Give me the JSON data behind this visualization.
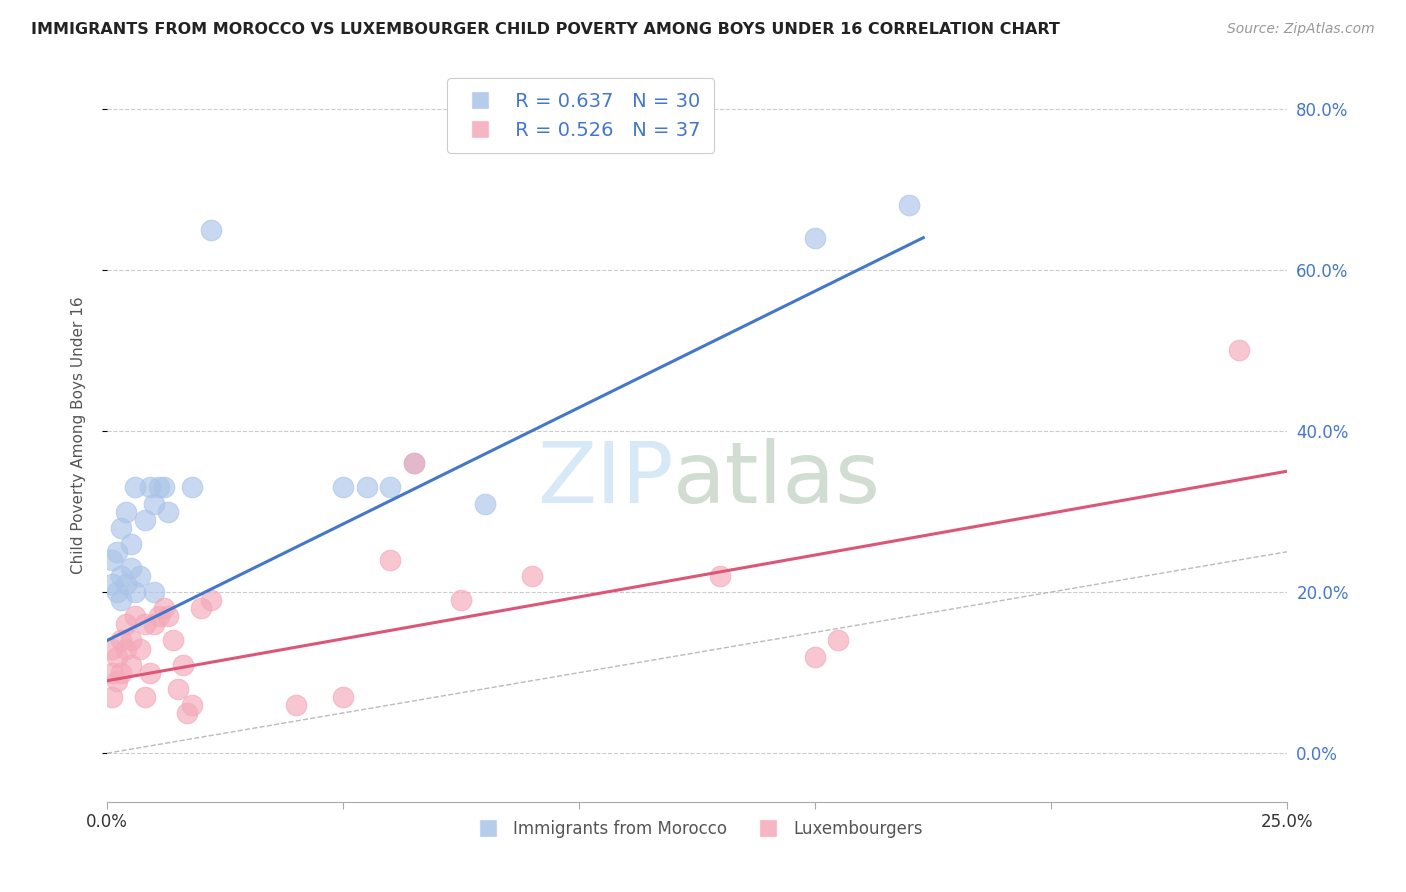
{
  "title": "IMMIGRANTS FROM MOROCCO VS LUXEMBOURGER CHILD POVERTY AMONG BOYS UNDER 16 CORRELATION CHART",
  "source": "Source: ZipAtlas.com",
  "ylabel": "Child Poverty Among Boys Under 16",
  "xlim": [
    0.0,
    0.25
  ],
  "ylim": [
    -0.06,
    0.85
  ],
  "xticks": [
    0.0,
    0.05,
    0.1,
    0.15,
    0.2,
    0.25
  ],
  "xtick_labels_ends": [
    "0.0%",
    "25.0%"
  ],
  "yticks": [
    0.0,
    0.2,
    0.4,
    0.6,
    0.8
  ],
  "ytick_labels": [
    "0.0%",
    "20.0%",
    "40.0%",
    "60.0%",
    "80.0%"
  ],
  "blue_R": "R = 0.637",
  "blue_N": "N = 30",
  "pink_R": "R = 0.526",
  "pink_N": "N = 37",
  "blue_color": "#aac4e8",
  "pink_color": "#f4a8b8",
  "blue_line_color": "#4477cc",
  "pink_line_color": "#dd5577",
  "legend_label_blue": "Immigrants from Morocco",
  "legend_label_pink": "Luxembourgers",
  "watermark_zip": "ZIP",
  "watermark_atlas": "atlas",
  "blue_points_x": [
    0.001,
    0.001,
    0.002,
    0.002,
    0.003,
    0.003,
    0.003,
    0.004,
    0.004,
    0.005,
    0.005,
    0.006,
    0.006,
    0.007,
    0.008,
    0.009,
    0.01,
    0.01,
    0.011,
    0.012,
    0.013,
    0.018,
    0.022,
    0.05,
    0.055,
    0.06,
    0.065,
    0.08,
    0.15,
    0.17
  ],
  "blue_points_y": [
    0.21,
    0.24,
    0.2,
    0.25,
    0.19,
    0.22,
    0.28,
    0.21,
    0.3,
    0.23,
    0.26,
    0.2,
    0.33,
    0.22,
    0.29,
    0.33,
    0.2,
    0.31,
    0.33,
    0.33,
    0.3,
    0.33,
    0.65,
    0.33,
    0.33,
    0.33,
    0.36,
    0.31,
    0.64,
    0.68
  ],
  "pink_points_x": [
    0.001,
    0.001,
    0.001,
    0.002,
    0.002,
    0.003,
    0.003,
    0.004,
    0.004,
    0.005,
    0.005,
    0.006,
    0.007,
    0.008,
    0.008,
    0.009,
    0.01,
    0.011,
    0.012,
    0.013,
    0.014,
    0.015,
    0.016,
    0.017,
    0.018,
    0.02,
    0.022,
    0.04,
    0.05,
    0.06,
    0.065,
    0.075,
    0.09,
    0.13,
    0.15,
    0.155,
    0.24
  ],
  "pink_points_y": [
    0.13,
    0.1,
    0.07,
    0.12,
    0.09,
    0.14,
    0.1,
    0.13,
    0.16,
    0.14,
    0.11,
    0.17,
    0.13,
    0.16,
    0.07,
    0.1,
    0.16,
    0.17,
    0.18,
    0.17,
    0.14,
    0.08,
    0.11,
    0.05,
    0.06,
    0.18,
    0.19,
    0.06,
    0.07,
    0.24,
    0.36,
    0.19,
    0.22,
    0.22,
    0.12,
    0.14,
    0.5
  ],
  "blue_trend_x": [
    0.0,
    0.173
  ],
  "blue_trend_y": [
    0.14,
    0.64
  ],
  "pink_trend_x": [
    0.0,
    0.25
  ],
  "pink_trend_y": [
    0.09,
    0.35
  ],
  "ref_line_x": [
    0.0,
    0.85
  ],
  "ref_line_y": [
    0.0,
    0.85
  ]
}
